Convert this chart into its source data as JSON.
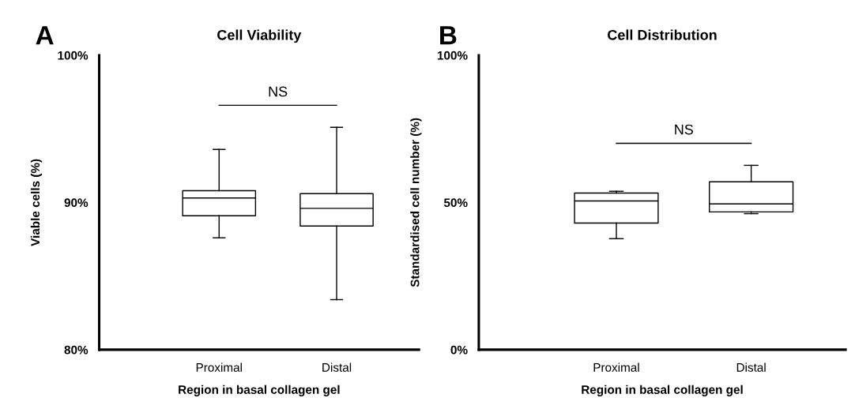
{
  "chart_data": [
    {
      "type": "box",
      "title": "Cell Viability",
      "xlabel": "Region in basal collagen gel",
      "ylabel": "Viable cells (%)",
      "categories": [
        "Proximal",
        "Distal"
      ],
      "boxes": [
        {
          "low": 87.6,
          "q1": 89.1,
          "median": 90.3,
          "q3": 90.8,
          "high": 93.6
        },
        {
          "low": 83.4,
          "q1": 88.4,
          "median": 89.6,
          "q3": 90.6,
          "high": 95.1
        }
      ],
      "ylim": [
        80,
        100
      ],
      "yticks": [
        {
          "value": 80,
          "label": "80%"
        },
        {
          "value": 90,
          "label": "90%"
        },
        {
          "value": 100,
          "label": "100%"
        }
      ],
      "annotations": [
        "A",
        "NS"
      ],
      "grid": false
    },
    {
      "type": "box",
      "title": "Cell Distribution",
      "xlabel": "Region in basal collagen gel",
      "ylabel": "Standardised cell number (%)",
      "categories": [
        "Proximal",
        "Distal"
      ],
      "boxes": [
        {
          "low": 37.7,
          "q1": 43.0,
          "median": 50.5,
          "q3": 53.2,
          "high": 53.8
        },
        {
          "low": 46.2,
          "q1": 46.8,
          "median": 49.5,
          "q3": 57.0,
          "high": 62.6
        }
      ],
      "ylim": [
        0,
        100
      ],
      "yticks": [
        {
          "value": 0,
          "label": "0%"
        },
        {
          "value": 50,
          "label": "50%"
        },
        {
          "value": 100,
          "label": "100%"
        }
      ],
      "annotations": [
        "B",
        "NS"
      ],
      "grid": false
    }
  ]
}
